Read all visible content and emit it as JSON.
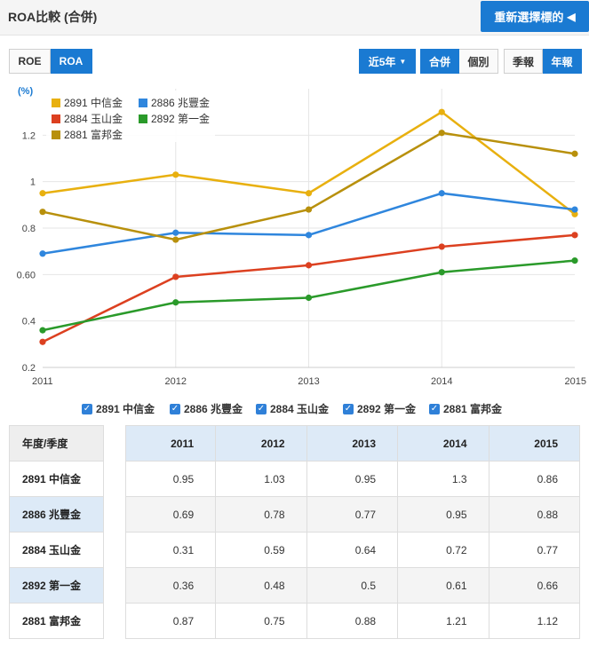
{
  "header": {
    "title": "ROA比較 (合併)",
    "reselect_label": "重新選擇標的"
  },
  "toolbar": {
    "metrics": [
      "ROE",
      "ROA"
    ],
    "active_metric": "ROA",
    "range_label": "近5年",
    "merge_options": [
      "合併",
      "個別"
    ],
    "period_options": [
      "季報",
      "年報"
    ]
  },
  "colors": {
    "accent": "#1a7ad2"
  },
  "chart_data": {
    "type": "line",
    "x": [
      "2011",
      "2012",
      "2013",
      "2014",
      "2015"
    ],
    "ylabel": "(%)",
    "ylim": [
      0.2,
      1.4
    ],
    "yticks": [
      "0.2",
      "0.4",
      "0.60",
      "0.8",
      "1",
      "1.2"
    ],
    "grid": true,
    "legend_position": "top-left",
    "series": [
      {
        "name": "2891 中信金",
        "color": "#e8b00f",
        "values": [
          0.95,
          1.03,
          0.95,
          1.3,
          0.86
        ]
      },
      {
        "name": "2886 兆豐金",
        "color": "#2f86dd",
        "values": [
          0.69,
          0.78,
          0.77,
          0.95,
          0.88
        ]
      },
      {
        "name": "2884 玉山金",
        "color": "#dc4020",
        "values": [
          0.31,
          0.59,
          0.64,
          0.72,
          0.77
        ]
      },
      {
        "name": "2892 第一金",
        "color": "#2a9a2a",
        "values": [
          0.36,
          0.48,
          0.5,
          0.61,
          0.66
        ]
      },
      {
        "name": "2881 富邦金",
        "color": "#b8900c",
        "values": [
          0.87,
          0.75,
          0.88,
          1.21,
          1.12
        ]
      }
    ]
  },
  "table": {
    "corner_header": "年度/季度",
    "columns": [
      "2011",
      "2012",
      "2013",
      "2014",
      "2015"
    ],
    "rows": [
      {
        "label": "2891 中信金",
        "values": [
          "0.95",
          "1.03",
          "0.95",
          "1.3",
          "0.86"
        ]
      },
      {
        "label": "2886 兆豐金",
        "values": [
          "0.69",
          "0.78",
          "0.77",
          "0.95",
          "0.88"
        ]
      },
      {
        "label": "2884 玉山金",
        "values": [
          "0.31",
          "0.59",
          "0.64",
          "0.72",
          "0.77"
        ]
      },
      {
        "label": "2892 第一金",
        "values": [
          "0.36",
          "0.48",
          "0.5",
          "0.61",
          "0.66"
        ]
      },
      {
        "label": "2881 富邦金",
        "values": [
          "0.87",
          "0.75",
          "0.88",
          "1.21",
          "1.12"
        ]
      }
    ]
  }
}
